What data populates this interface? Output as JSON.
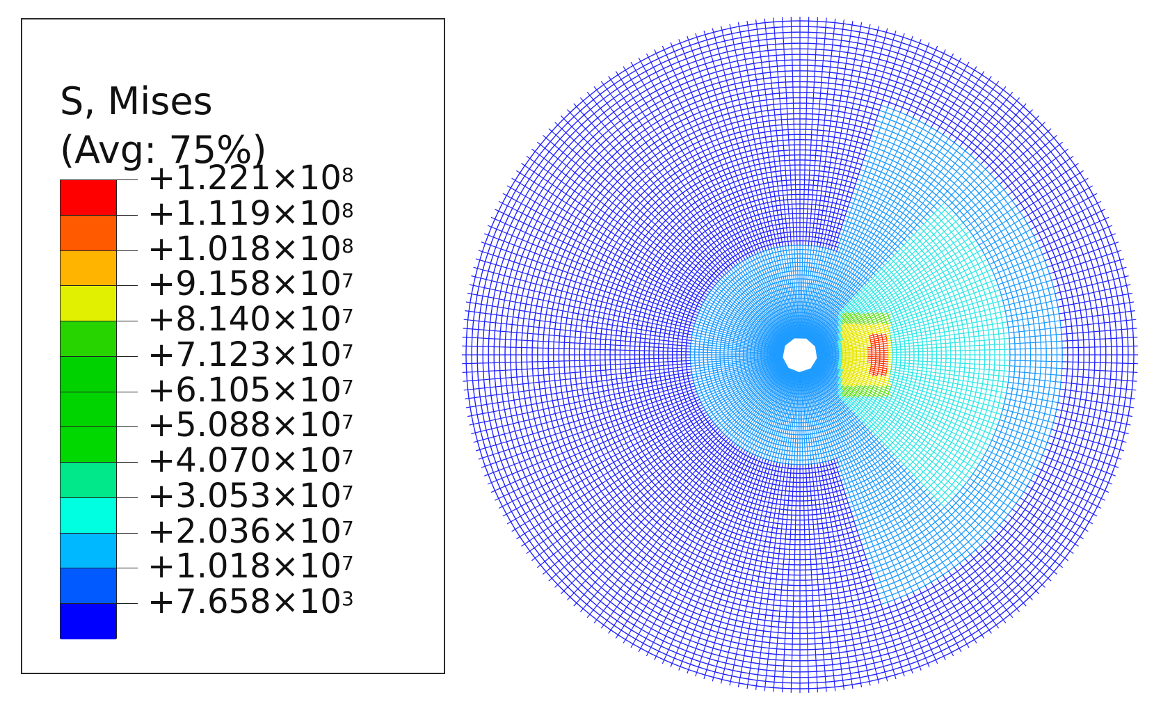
{
  "legend": {
    "title_line1": "S, Mises",
    "title_line2": "(Avg: 75%)",
    "bands": [
      {
        "color": "#ff0000"
      },
      {
        "color": "#ff5a00"
      },
      {
        "color": "#ffb400"
      },
      {
        "color": "#e0f000"
      },
      {
        "color": "#28d400"
      },
      {
        "color": "#00d200"
      },
      {
        "color": "#00d400"
      },
      {
        "color": "#00d800"
      },
      {
        "color": "#00e88a"
      },
      {
        "color": "#00ffe0"
      },
      {
        "color": "#00b8ff"
      },
      {
        "color": "#005aff"
      },
      {
        "color": "#0000ff"
      }
    ],
    "levels": [
      {
        "mantissa": "+1.221",
        "times": "×10",
        "exp": "8"
      },
      {
        "mantissa": "+1.119",
        "times": "×10",
        "exp": "8"
      },
      {
        "mantissa": "+1.018",
        "times": "×10",
        "exp": "8"
      },
      {
        "mantissa": "+9.158",
        "times": "×10",
        "exp": "7"
      },
      {
        "mantissa": "+8.140",
        "times": "×10",
        "exp": "7"
      },
      {
        "mantissa": "+7.123",
        "times": "×10",
        "exp": "7"
      },
      {
        "mantissa": "+6.105",
        "times": "×10",
        "exp": "7"
      },
      {
        "mantissa": "+5.088",
        "times": "×10",
        "exp": "7"
      },
      {
        "mantissa": "+4.070",
        "times": "×10",
        "exp": "7"
      },
      {
        "mantissa": "+3.053",
        "times": "×10",
        "exp": "7"
      },
      {
        "mantissa": "+2.036",
        "times": "×10",
        "exp": "7"
      },
      {
        "mantissa": "+1.018",
        "times": "×10",
        "exp": "7"
      },
      {
        "mantissa": "+7.658",
        "times": "×10",
        "exp": "3"
      }
    ]
  },
  "mesh": {
    "line_color": "#1a1aff",
    "stress_colors": {
      "low": "#2222ff",
      "mid": "#1e9bff",
      "high_cyan": "#33e6e6",
      "hot_green": "#66dd22",
      "hot_yellow": "#e6e600",
      "hot_red": "#ff3300"
    }
  }
}
